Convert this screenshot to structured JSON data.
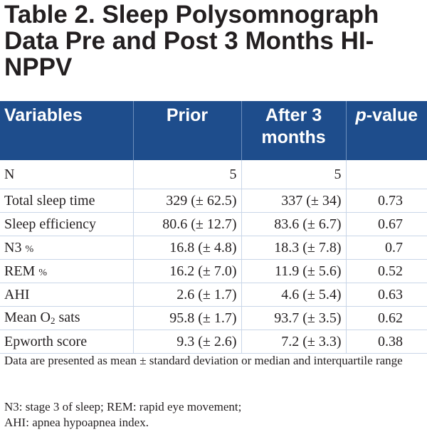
{
  "title": "Table 2. Sleep Polysomnograph Data Pre and Post 3 Months HI-NPPV",
  "headers": {
    "variables": "Variables",
    "prior": "Prior",
    "after": "After 3 months",
    "p_italic": "p",
    "p_rest": "-value"
  },
  "rows": [
    {
      "label": "N",
      "prior": "5",
      "after": "5",
      "p": ""
    },
    {
      "label": "Total sleep time",
      "prior": "329 (± 62.5)",
      "after": "337 (± 34)",
      "p": "0.73"
    },
    {
      "label": "Sleep efficiency",
      "prior": "80.6 (± 12.7)",
      "after": "83.6 (± 6.7)",
      "p": "0.67"
    },
    {
      "label": "N3",
      "pct": "%",
      "prior": "16.8 (± 4.8)",
      "after": "18.3 (± 7.8)",
      "p": "0.7"
    },
    {
      "label": "REM",
      "pct": "%",
      "prior": "16.2 (± 7.0)",
      "after": "11.9 (± 5.6)",
      "p": "0.52"
    },
    {
      "label": "AHI",
      "prior": "2.6 (± 1.7)",
      "after": "4.6 (± 5.4)",
      "p": "0.63"
    },
    {
      "label_pre": "Mean O",
      "label_sub": "2",
      "label_post": " sats",
      "prior": "95.8 (± 1.7)",
      "after": "93.7 (± 3.5)",
      "p": "0.62"
    },
    {
      "label": "Epworth score",
      "prior": "9.3 (± 2.6)",
      "after": "7.2 (± 3.3)",
      "p": "0.38"
    }
  ],
  "notes": {
    "stats": "Data are presented as mean ± standard deviation or median and interquartile range",
    "abbreviations_1": "N3: stage 3 of sleep; REM: rapid eye movement;",
    "abbreviations_2": "AHI: apnea hypoapnea index."
  }
}
